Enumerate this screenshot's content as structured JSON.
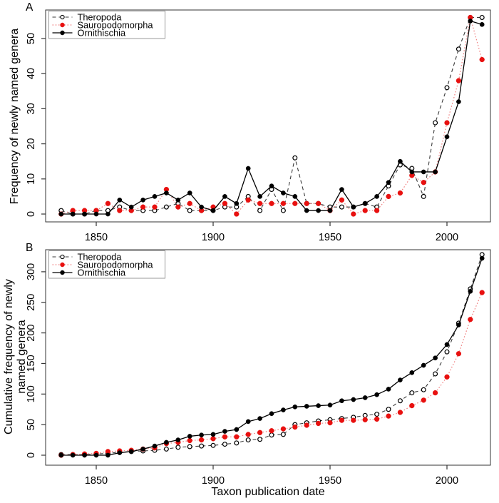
{
  "figure": {
    "panel_a_label": "A",
    "panel_b_label": "B",
    "x_axis_label": "Taxon publication date",
    "panel_a_y_label": "Frequency of newly named genera",
    "panel_b_y_label_line1": "Cumulative frequency of newly",
    "panel_b_y_label_line2": "named genera"
  },
  "colors": {
    "theropoda": "#000000",
    "theropoda_line": "#3a3a3a",
    "sauropodomorpha": "#e8100f",
    "sauropodomorpha_line": "#f08080",
    "ornithischia": "#000000",
    "axis": "#333333",
    "legend_border": "#999999"
  },
  "chart_data": [
    {
      "panel": "A",
      "type": "line",
      "title": "",
      "xlabel": "Taxon publication date",
      "ylabel": "Frequency of newly named genera",
      "grid": false,
      "legend_position": "top-left",
      "x": [
        1835,
        1840,
        1845,
        1850,
        1855,
        1860,
        1865,
        1870,
        1875,
        1880,
        1885,
        1890,
        1895,
        1900,
        1905,
        1910,
        1915,
        1920,
        1925,
        1930,
        1935,
        1940,
        1945,
        1950,
        1955,
        1960,
        1965,
        1970,
        1975,
        1980,
        1985,
        1990,
        1995,
        2000,
        2005,
        2010,
        2015
      ],
      "xticks": [
        1850,
        1900,
        1950,
        2000
      ],
      "yticks": [
        0,
        10,
        20,
        30,
        40,
        50
      ],
      "ylim": [
        0,
        57
      ],
      "series": [
        {
          "name": "Theropoda",
          "marker": "open-circle",
          "line": "dashed",
          "values": [
            1,
            0,
            0,
            1,
            1,
            2,
            1,
            1,
            1,
            2,
            3,
            1,
            1,
            1,
            2,
            2,
            5,
            1,
            7,
            1,
            16,
            3,
            3,
            2,
            2,
            2,
            3,
            2,
            8,
            14,
            13,
            5,
            26,
            36,
            47,
            56,
            56
          ]
        },
        {
          "name": "Sauropodomorpha",
          "marker": "filled-circle",
          "line": "dotted",
          "values": [
            0,
            1,
            1,
            1,
            3,
            1,
            1,
            2,
            2,
            7,
            2,
            3,
            1,
            2,
            3,
            0,
            4,
            3,
            3,
            3,
            3,
            3,
            3,
            1,
            4,
            0,
            1,
            1,
            5,
            6,
            11,
            9,
            12,
            26,
            38,
            56,
            44
          ]
        },
        {
          "name": "Ornithischia",
          "marker": "filled-circle",
          "line": "solid",
          "values": [
            0,
            0,
            0,
            0,
            0,
            4,
            2,
            4,
            5,
            6,
            4,
            6,
            2,
            1,
            5,
            3,
            13,
            5,
            8,
            6,
            5,
            1,
            1,
            1,
            7,
            2,
            3,
            5,
            9,
            15,
            12,
            12,
            12,
            22,
            32,
            55,
            54
          ]
        }
      ]
    },
    {
      "panel": "B",
      "type": "line",
      "title": "",
      "xlabel": "Taxon publication date",
      "ylabel": "Cumulative frequency of newly named genera",
      "grid": false,
      "legend_position": "top-left",
      "x": [
        1835,
        1840,
        1845,
        1850,
        1855,
        1860,
        1865,
        1870,
        1875,
        1880,
        1885,
        1890,
        1895,
        1900,
        1905,
        1910,
        1915,
        1920,
        1925,
        1930,
        1935,
        1940,
        1945,
        1950,
        1955,
        1960,
        1965,
        1970,
        1975,
        1980,
        1985,
        1990,
        1995,
        2000,
        2005,
        2010,
        2015
      ],
      "xticks": [
        1850,
        1900,
        1950,
        2000
      ],
      "yticks": [
        0,
        50,
        100,
        150,
        200,
        250,
        300
      ],
      "ylim": [
        0,
        330
      ],
      "series": [
        {
          "name": "Theropoda",
          "marker": "open-circle",
          "line": "dashed",
          "values": [
            1,
            1,
            1,
            2,
            3,
            5,
            6,
            7,
            8,
            10,
            13,
            14,
            15,
            16,
            18,
            20,
            25,
            26,
            33,
            34,
            50,
            53,
            56,
            58,
            60,
            62,
            65,
            67,
            75,
            89,
            102,
            107,
            133,
            169,
            216,
            272,
            328
          ]
        },
        {
          "name": "Sauropodomorpha",
          "marker": "filled-circle",
          "line": "dotted",
          "values": [
            0,
            1,
            2,
            3,
            6,
            7,
            8,
            10,
            12,
            19,
            21,
            24,
            25,
            27,
            30,
            30,
            34,
            37,
            40,
            43,
            46,
            49,
            52,
            53,
            57,
            57,
            58,
            59,
            64,
            70,
            81,
            90,
            102,
            128,
            166,
            222,
            266
          ]
        },
        {
          "name": "Ornithischia",
          "marker": "filled-circle",
          "line": "solid",
          "values": [
            0,
            0,
            0,
            0,
            0,
            4,
            6,
            10,
            15,
            21,
            25,
            31,
            33,
            34,
            39,
            42,
            55,
            60,
            68,
            74,
            79,
            80,
            81,
            82,
            89,
            91,
            94,
            99,
            108,
            123,
            135,
            147,
            159,
            181,
            213,
            268,
            322
          ]
        }
      ]
    }
  ],
  "legend": {
    "entries": [
      "Theropoda",
      "Sauropodomorpha",
      "Ornithischia"
    ]
  }
}
